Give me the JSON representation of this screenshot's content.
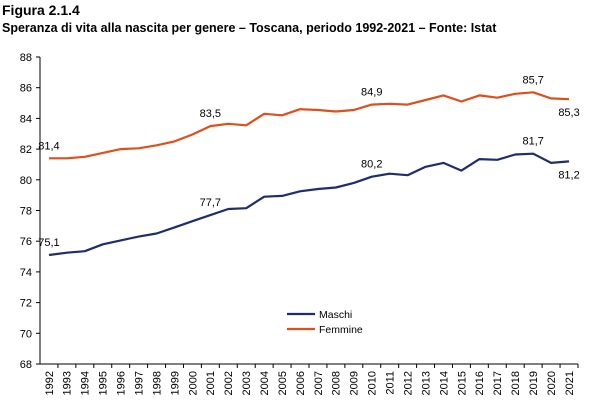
{
  "figure": {
    "label": "Figura 2.1.4",
    "title": "Speranza di vita alla nascita per genere – Toscana, periodo 1992-2021 – Fonte: Istat"
  },
  "chart_data": {
    "type": "line",
    "title": "Speranza di vita alla nascita per genere – Toscana, periodo 1992-2021 – Fonte: Istat",
    "xlabel": "",
    "ylabel": "",
    "ylim": [
      68,
      88
    ],
    "yticks": [
      68,
      70,
      72,
      74,
      76,
      78,
      80,
      82,
      84,
      86,
      88
    ],
    "grid": false,
    "legend_position": "center-left",
    "x": [
      "1992",
      "1993",
      "1994",
      "1995",
      "1996",
      "1997",
      "1998",
      "1999",
      "2000",
      "2001",
      "2002",
      "2003",
      "2004",
      "2005",
      "2006",
      "2007",
      "2008",
      "2009",
      "2010",
      "2011",
      "2012",
      "2013",
      "2014",
      "2015",
      "2016",
      "2017",
      "2018",
      "2019",
      "2020",
      "2021"
    ],
    "series": [
      {
        "name": "Maschi",
        "color": "#1f2d6e",
        "values": [
          75.1,
          75.25,
          75.35,
          75.8,
          76.05,
          76.3,
          76.5,
          76.9,
          77.3,
          77.7,
          78.1,
          78.15,
          78.9,
          78.95,
          79.25,
          79.4,
          79.5,
          79.8,
          80.2,
          80.4,
          80.3,
          80.85,
          81.1,
          80.6,
          81.35,
          81.3,
          81.65,
          81.7,
          81.1,
          81.2
        ],
        "labels": [
          {
            "x": "1992",
            "text": "75,1",
            "pos": "above"
          },
          {
            "x": "2001",
            "text": "77,7",
            "pos": "above"
          },
          {
            "x": "2010",
            "text": "80,2",
            "pos": "above"
          },
          {
            "x": "2019",
            "text": "81,7",
            "pos": "above"
          },
          {
            "x": "2021",
            "text": "81,2",
            "pos": "below"
          }
        ]
      },
      {
        "name": "Femmine",
        "color": "#e04e1b",
        "values": [
          81.4,
          81.4,
          81.5,
          81.75,
          82.0,
          82.05,
          82.25,
          82.5,
          82.95,
          83.5,
          83.65,
          83.55,
          84.3,
          84.2,
          84.6,
          84.55,
          84.45,
          84.55,
          84.9,
          84.95,
          84.9,
          85.2,
          85.5,
          85.1,
          85.5,
          85.35,
          85.6,
          85.7,
          85.3,
          85.25
        ],
        "labels": [
          {
            "x": "1992",
            "text": "81,4",
            "pos": "above"
          },
          {
            "x": "2001",
            "text": "83,5",
            "pos": "above"
          },
          {
            "x": "2010",
            "text": "84,9",
            "pos": "above"
          },
          {
            "x": "2019",
            "text": "85,7",
            "pos": "above"
          },
          {
            "x": "2021",
            "text": "85,3",
            "pos": "below"
          }
        ]
      }
    ]
  }
}
